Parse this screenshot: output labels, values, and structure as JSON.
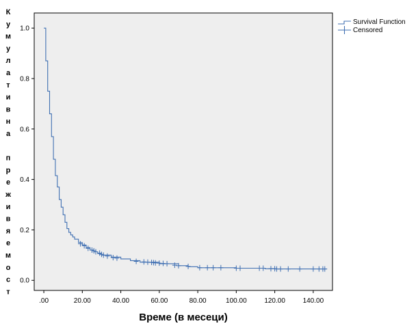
{
  "chart_data": {
    "type": "line",
    "xlabel": "Време (в месеци)",
    "ylabel": "Кумулативна преживяемост",
    "ylabel_lines": [
      "К",
      "у",
      "м",
      "у",
      "л",
      "а",
      "т",
      "и",
      "в",
      "н",
      "а",
      "",
      "п",
      "р",
      "е",
      "ж",
      "и",
      "в",
      "я",
      "е",
      "м",
      "о",
      "с",
      "т"
    ],
    "xlim": [
      -5,
      150
    ],
    "ylim": [
      -0.04,
      1.06
    ],
    "x_ticks": [
      0,
      20,
      40,
      60,
      80,
      100,
      120,
      140
    ],
    "x_tick_labels": [
      ".00",
      "20.00",
      "40.00",
      "60.00",
      "80.00",
      "100.00",
      "120.00",
      "140.00"
    ],
    "y_ticks": [
      0,
      0.2,
      0.4,
      0.6,
      0.8,
      1.0
    ],
    "y_tick_labels": [
      "0.0",
      "0.2",
      "0.4",
      "0.6",
      "0.8",
      "1.0"
    ],
    "grid": false,
    "legend_position": "top-right outside",
    "colors": {
      "line": "#3f6fb2",
      "plot_bg": "#eeeeee",
      "axis": "#000000"
    },
    "series": [
      {
        "name": "Survival Function",
        "kind": "step",
        "x": [
          0,
          1,
          2,
          3,
          4,
          5,
          6,
          7,
          8,
          9,
          10,
          11,
          12,
          13,
          14,
          15,
          16,
          18,
          20,
          22,
          24,
          26,
          28,
          30,
          35,
          40,
          45,
          50,
          60,
          70,
          75,
          80,
          90,
          100,
          110,
          115,
          120,
          130,
          140,
          147
        ],
        "y": [
          1.0,
          0.87,
          0.75,
          0.66,
          0.57,
          0.48,
          0.415,
          0.37,
          0.32,
          0.29,
          0.26,
          0.23,
          0.205,
          0.19,
          0.18,
          0.172,
          0.163,
          0.15,
          0.14,
          0.13,
          0.12,
          0.113,
          0.106,
          0.1,
          0.092,
          0.085,
          0.078,
          0.072,
          0.066,
          0.058,
          0.054,
          0.05,
          0.05,
          0.048,
          0.048,
          0.046,
          0.045,
          0.045,
          0.045,
          0.045
        ]
      },
      {
        "name": "Censored",
        "kind": "marker",
        "x": [
          19,
          21,
          23,
          25,
          26,
          27,
          29,
          30,
          31,
          33,
          36,
          38,
          48,
          52,
          54,
          56,
          57,
          58,
          60,
          62,
          64,
          68,
          70,
          75,
          81,
          85,
          88,
          92,
          100,
          102,
          112,
          114,
          118,
          120,
          121,
          123,
          127,
          133,
          140,
          143,
          145,
          146
        ],
        "y": [
          0.145,
          0.137,
          0.127,
          0.12,
          0.117,
          0.113,
          0.108,
          0.103,
          0.1,
          0.096,
          0.09,
          0.088,
          0.075,
          0.073,
          0.072,
          0.071,
          0.07,
          0.069,
          0.068,
          0.067,
          0.066,
          0.06,
          0.058,
          0.055,
          0.05,
          0.05,
          0.05,
          0.05,
          0.048,
          0.048,
          0.048,
          0.048,
          0.046,
          0.046,
          0.045,
          0.045,
          0.045,
          0.045,
          0.045,
          0.045,
          0.045,
          0.045
        ]
      }
    ]
  }
}
